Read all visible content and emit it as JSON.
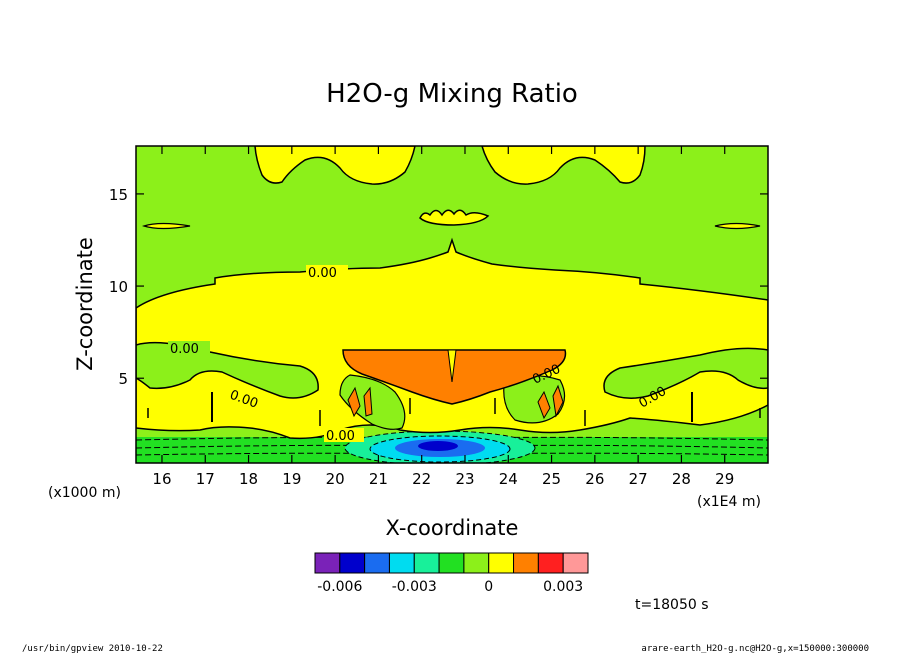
{
  "chart_data": {
    "type": "contour",
    "title": "H2O-g Mixing Ratio",
    "xlabel": "X-coordinate",
    "ylabel": "Z-coordinate",
    "x_unit_note": "(x1E4 m)",
    "y_unit_note": "(x1000 m)",
    "xlim": [
      15.4,
      30.0
    ],
    "ylim": [
      0.4,
      17.6
    ],
    "x_ticks": [
      "16",
      "17",
      "18",
      "19",
      "20",
      "21",
      "22",
      "23",
      "24",
      "25",
      "26",
      "27",
      "28",
      "29"
    ],
    "y_ticks": [
      "5",
      "10",
      "15"
    ],
    "contour_labels": [
      "0.00",
      "0.00",
      "0.00",
      "0.00",
      "0.00",
      "0.00"
    ],
    "colorbar": {
      "colors": [
        "#7a22b8",
        "#0000cc",
        "#1a6cf0",
        "#00dcf0",
        "#18f09a",
        "#22e022",
        "#8cf01a",
        "#ffff00",
        "#ff8000",
        "#ff2020",
        "#ff9898"
      ],
      "tick_labels": [
        "-0.006",
        "-0.003",
        "0",
        "0.003"
      ]
    },
    "time_label": "t=18050 s"
  },
  "footer": {
    "left": "/usr/bin/gpview   2010-10-22",
    "right": "arare-earth_H2O-g.nc@H2O-g,x=150000:300000"
  }
}
